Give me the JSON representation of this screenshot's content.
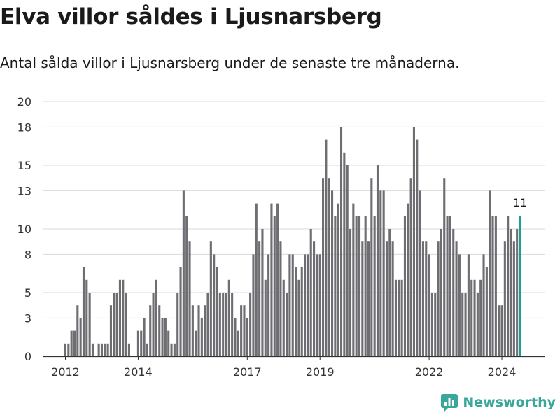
{
  "header": {
    "title": "Elva villor såldes i Ljusnarsberg",
    "subtitle": "Antal sålda villor i Ljusnarsberg under de senaste tre månaderna."
  },
  "brand": {
    "name": "Newsworthy",
    "color": "#3aa79a"
  },
  "colors": {
    "bar": "#6d6d72",
    "highlight": "#1b9e94",
    "grid": "#d9d9d9",
    "axis": "#333333"
  },
  "chart_data": {
    "type": "bar",
    "title": "Elva villor såldes i Ljusnarsberg",
    "subtitle": "Antal sålda villor i Ljusnarsberg under de senaste tre månaderna.",
    "xlabel": "",
    "ylabel": "",
    "ylim": [
      0,
      20
    ],
    "yticks": [
      0,
      3,
      5,
      8,
      10,
      13,
      15,
      18,
      20
    ],
    "ytick_labels": [
      "0",
      "3",
      "5",
      "8",
      "10",
      "13",
      "15",
      "18",
      "20"
    ],
    "xticks": [
      {
        "label": "2012",
        "index": 0
      },
      {
        "label": "2014",
        "index": 24
      },
      {
        "label": "2017",
        "index": 60
      },
      {
        "label": "2019",
        "index": 84
      },
      {
        "label": "2022",
        "index": 120
      },
      {
        "label": "2024",
        "index": 144
      }
    ],
    "grid": true,
    "highlight_label": "11",
    "highlight_index": 150,
    "values": [
      1,
      1,
      2,
      2,
      4,
      3,
      7,
      6,
      5,
      1,
      0,
      1,
      1,
      1,
      1,
      4,
      5,
      5,
      6,
      6,
      5,
      1,
      0,
      0,
      2,
      2,
      3,
      1,
      4,
      5,
      6,
      4,
      3,
      3,
      2,
      1,
      1,
      5,
      7,
      13,
      11,
      9,
      4,
      2,
      4,
      3,
      4,
      5,
      9,
      8,
      7,
      5,
      5,
      5,
      6,
      5,
      3,
      2,
      4,
      4,
      3,
      5,
      8,
      12,
      9,
      10,
      6,
      8,
      12,
      11,
      12,
      9,
      6,
      5,
      8,
      8,
      7,
      6,
      7,
      8,
      8,
      10,
      9,
      8,
      8,
      14,
      17,
      14,
      13,
      11,
      12,
      18,
      16,
      15,
      10,
      12,
      11,
      11,
      9,
      11,
      9,
      14,
      11,
      15,
      13,
      13,
      9,
      10,
      9,
      6,
      6,
      6,
      11,
      12,
      14,
      18,
      17,
      13,
      9,
      9,
      8,
      5,
      5,
      9,
      10,
      14,
      11,
      11,
      10,
      9,
      8,
      5,
      5,
      8,
      6,
      6,
      5,
      6,
      8,
      7,
      13,
      11,
      11,
      4,
      4,
      9,
      11,
      10,
      9,
      10,
      11
    ]
  }
}
